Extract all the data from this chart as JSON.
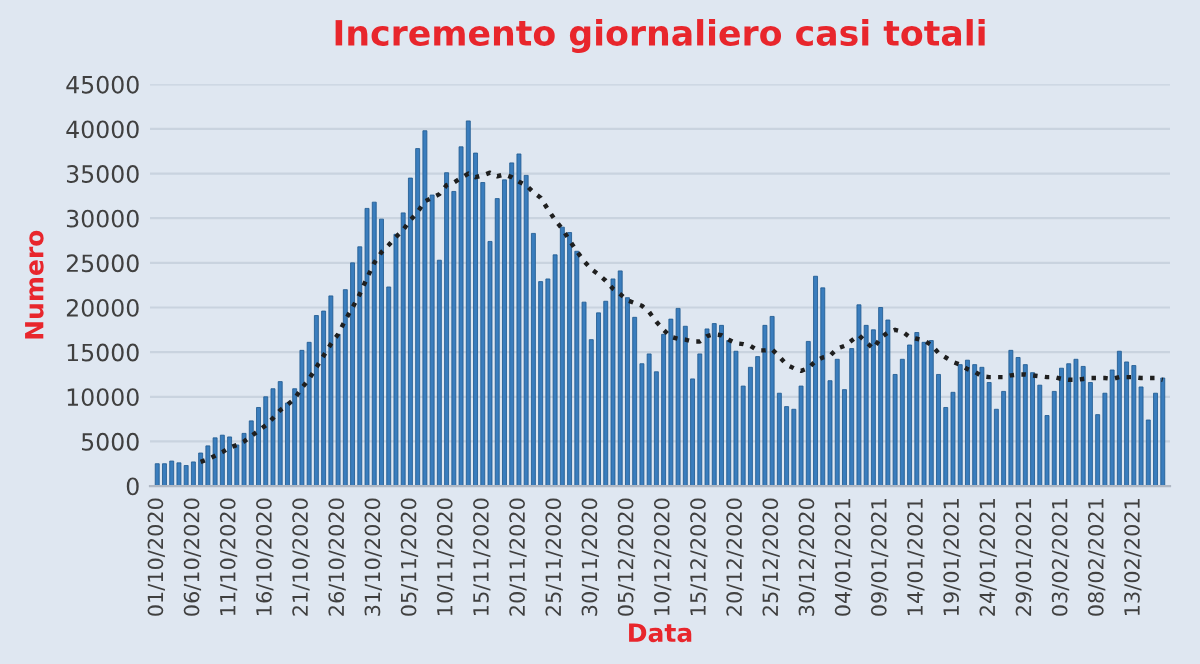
{
  "chart_data": {
    "type": "bar",
    "title": "Incremento giornaliero casi totali",
    "xlabel": "Data",
    "ylabel": "Numero",
    "categories": [
      "01/10/2020",
      null,
      null,
      null,
      null,
      "06/10/2020",
      null,
      null,
      null,
      null,
      "11/10/2020",
      null,
      null,
      null,
      null,
      "16/10/2020",
      null,
      null,
      null,
      null,
      "21/10/2020",
      null,
      null,
      null,
      null,
      "26/10/2020",
      null,
      null,
      null,
      null,
      "31/10/2020",
      null,
      null,
      null,
      null,
      "05/11/2020",
      null,
      null,
      null,
      null,
      "10/11/2020",
      null,
      null,
      null,
      null,
      "15/11/2020",
      null,
      null,
      null,
      null,
      "20/11/2020",
      null,
      null,
      null,
      null,
      "25/11/2020",
      null,
      null,
      null,
      null,
      "30/11/2020",
      null,
      null,
      null,
      null,
      "05/12/2020",
      null,
      null,
      null,
      null,
      "10/12/2020",
      null,
      null,
      null,
      null,
      "15/12/2020",
      null,
      null,
      null,
      null,
      "20/12/2020",
      null,
      null,
      null,
      null,
      "25/12/2020",
      null,
      null,
      null,
      null,
      "30/12/2020",
      null,
      null,
      null,
      null,
      "04/01/2021",
      null,
      null,
      null,
      null,
      "09/01/2021",
      null,
      null,
      null,
      null,
      "14/01/2021",
      null,
      null,
      null,
      null,
      "19/01/2021",
      null,
      null,
      null,
      null,
      "24/01/2021",
      null,
      null,
      null,
      null,
      "29/01/2021",
      null,
      null,
      null,
      null,
      "03/02/2021",
      null,
      null,
      null,
      null,
      "08/02/2021",
      null,
      null,
      null,
      null,
      "13/02/2021",
      null,
      null,
      null,
      null
    ],
    "series": [
      {
        "color": "#3a7dbd",
        "values": [
          2500,
          2500,
          2800,
          2600,
          2300,
          2700,
          3700,
          4500,
          5400,
          5700,
          5500,
          4600,
          5900,
          7300,
          8800,
          10000,
          10900,
          11700,
          9300,
          10900,
          15200,
          16100,
          19100,
          19600,
          21300,
          17000,
          22000,
          25000,
          26800,
          31100,
          31800,
          29900,
          22300,
          28200,
          30600,
          34500,
          37800,
          39800,
          32600,
          25300,
          35100,
          33000,
          38000,
          40900,
          37300,
          34000,
          27400,
          32200,
          34300,
          36200,
          37200,
          34800,
          28300,
          22900,
          23200,
          25900,
          29000,
          28400,
          26300,
          20600,
          16400,
          19400,
          20700,
          23200,
          24100,
          21100,
          18900,
          13700,
          14800,
          12800,
          17000,
          18700,
          19900,
          17900,
          12000,
          14800,
          17600,
          18200,
          18000,
          16300,
          15100,
          11200,
          13300,
          14500,
          18000,
          19000,
          10400,
          8900,
          8600,
          11200,
          16200,
          23500,
          22200,
          11800,
          14200,
          10800,
          15400,
          20300,
          18000,
          17500,
          20000,
          18600,
          12500,
          14200,
          15800,
          17200,
          16100,
          16300,
          12500,
          8800,
          10500,
          13600,
          14100,
          13600,
          13300,
          11600,
          8600,
          10600,
          15200,
          14400,
          13600,
          12700,
          11300,
          7900,
          10600,
          13200,
          13700,
          14200,
          13400,
          11600,
          8000,
          10400,
          13000,
          15100,
          13900,
          13500,
          11100,
          7400,
          10400,
          12100
        ]
      },
      {
        "type": "line",
        "color": "#1f1f1f",
        "line_style": "dotted",
        "values": [
          null,
          null,
          null,
          null,
          null,
          null,
          2700,
          3000,
          3400,
          3800,
          4300,
          4600,
          5000,
          5600,
          6200,
          6800,
          7600,
          8500,
          9100,
          9800,
          11000,
          12000,
          13300,
          14600,
          15900,
          17000,
          18600,
          20000,
          21500,
          23300,
          25000,
          26200,
          27000,
          27900,
          28700,
          29800,
          30700,
          31900,
          32300,
          32700,
          33700,
          34000,
          34500,
          35000,
          34600,
          34800,
          35100,
          34700,
          34900,
          34600,
          34100,
          33700,
          32900,
          32300,
          31000,
          29800,
          28800,
          27500,
          26300,
          25200,
          24300,
          23700,
          23000,
          22100,
          21500,
          20800,
          20500,
          20200,
          19500,
          18400,
          17500,
          16700,
          16500,
          16400,
          16200,
          16200,
          16800,
          17000,
          16900,
          16400,
          16000,
          15900,
          15700,
          15200,
          15200,
          15300,
          14500,
          13600,
          13200,
          12900,
          13200,
          14000,
          14400,
          14600,
          15400,
          15700,
          16300,
          16900,
          16100,
          15400,
          16600,
          17200,
          17500,
          17300,
          16700,
          16500,
          16300,
          15800,
          14900,
          14400,
          13900,
          13600,
          13100,
          12800,
          12300,
          12200,
          12200,
          12200,
          12400,
          12500,
          12500,
          12400,
          12300,
          12200,
          12200,
          12000,
          11900,
          11900,
          12000,
          12100,
          12100,
          12100,
          12000,
          12200,
          12200,
          12200,
          12100,
          12100,
          12100,
          11900
        ]
      }
    ],
    "ylim": [
      0,
      45000
    ],
    "yticks": [
      0,
      5000,
      10000,
      15000,
      20000,
      25000,
      30000,
      35000,
      40000,
      45000
    ],
    "grid": "y",
    "legend": false
  }
}
